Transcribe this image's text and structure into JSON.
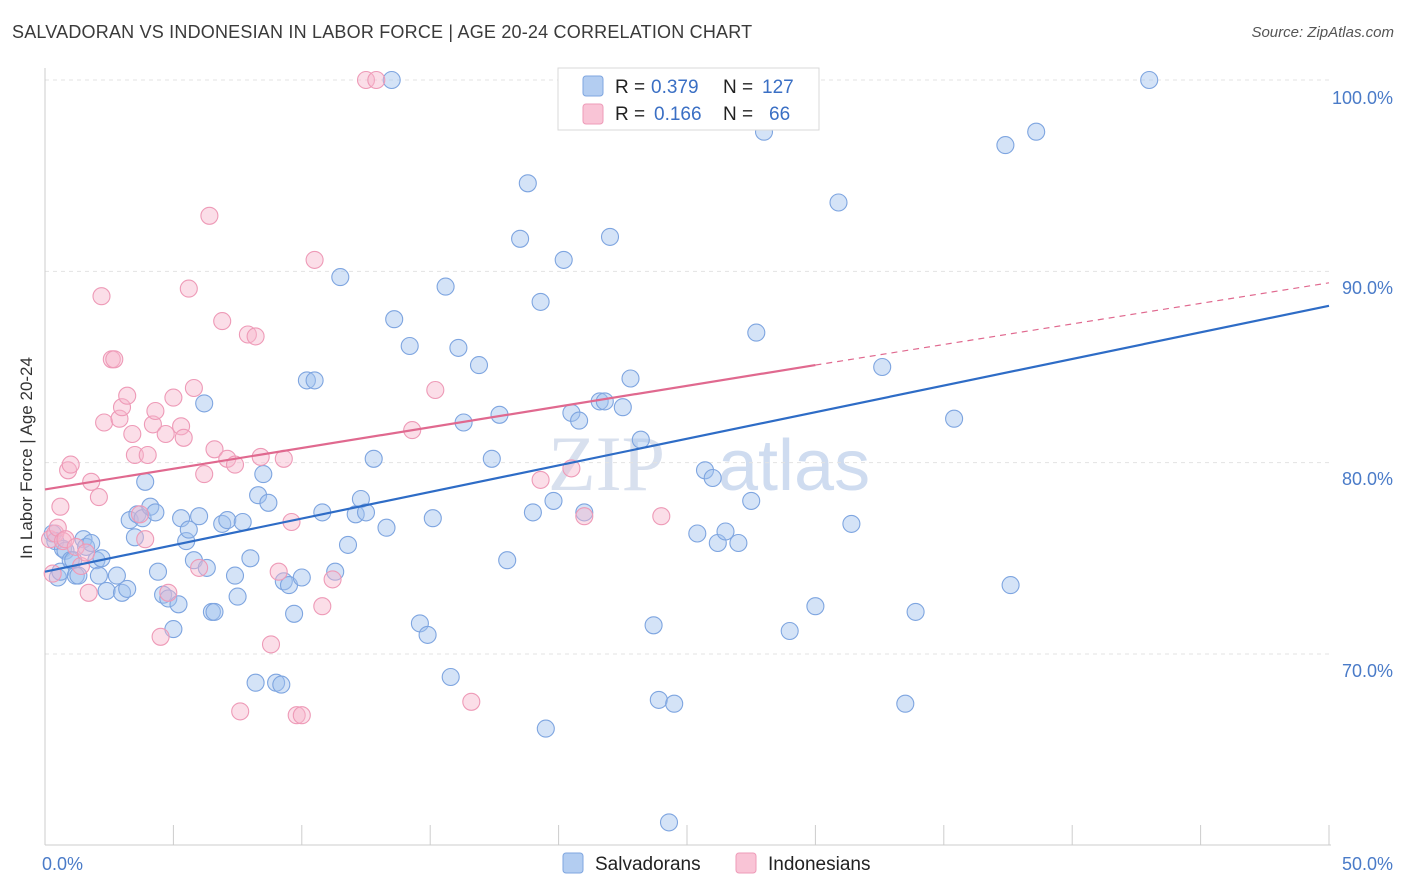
{
  "title": "SALVADORAN VS INDONESIAN IN LABOR FORCE | AGE 20-24 CORRELATION CHART",
  "source": "Source: ZipAtlas.com",
  "chart_data": {
    "type": "scatter",
    "title": "SALVADORAN VS INDONESIAN IN LABOR FORCE | AGE 20-24 CORRELATION CHART",
    "xlabel": "",
    "ylabel": "In Labor Force | Age 20-24",
    "xlim": [
      0,
      50
    ],
    "ylim": [
      60,
      100
    ],
    "x_tick_labels": [
      "0.0%",
      "50.0%"
    ],
    "y_ticks": [
      70,
      80,
      90,
      100
    ],
    "y_tick_labels": [
      "70.0%",
      "80.0%",
      "90.0%",
      "100.0%"
    ],
    "grid": true,
    "watermark": {
      "zip": "ZIP",
      "atlas": "atlas"
    },
    "legend_stats": [
      {
        "r_label": "R =",
        "r_value": "0.379",
        "n_label": "N =",
        "n_value": "127"
      },
      {
        "r_label": "R =",
        "r_value": "0.166",
        "n_label": "N =",
        "n_value": "66"
      }
    ],
    "series": [
      {
        "name": "Salvadorans",
        "color": "#8fb4e8",
        "line_color": "#2e6cc6",
        "trend": {
          "x": [
            0,
            50
          ],
          "y": [
            74.3,
            88.2
          ],
          "dashed_after": null
        },
        "points": [
          [
            0.3,
            76.3
          ],
          [
            0.4,
            75.9
          ],
          [
            0.5,
            74.0
          ],
          [
            0.6,
            74.3
          ],
          [
            0.7,
            75.5
          ],
          [
            0.8,
            75.4
          ],
          [
            1.0,
            74.9
          ],
          [
            1.1,
            74.9
          ],
          [
            1.2,
            74.1
          ],
          [
            1.3,
            74.1
          ],
          [
            1.5,
            76.0
          ],
          [
            1.6,
            75.6
          ],
          [
            1.8,
            75.8
          ],
          [
            2.0,
            74.9
          ],
          [
            2.1,
            74.1
          ],
          [
            2.2,
            75.0
          ],
          [
            2.4,
            73.3
          ],
          [
            2.8,
            74.1
          ],
          [
            3.0,
            73.2
          ],
          [
            3.2,
            73.4
          ],
          [
            3.3,
            77.0
          ],
          [
            3.5,
            76.1
          ],
          [
            3.6,
            77.3
          ],
          [
            3.8,
            77.1
          ],
          [
            3.9,
            79.0
          ],
          [
            4.1,
            77.7
          ],
          [
            4.3,
            77.4
          ],
          [
            4.4,
            74.3
          ],
          [
            4.6,
            73.1
          ],
          [
            4.8,
            72.9
          ],
          [
            5.0,
            71.3
          ],
          [
            5.2,
            72.6
          ],
          [
            5.3,
            77.1
          ],
          [
            5.5,
            75.9
          ],
          [
            5.6,
            76.5
          ],
          [
            5.8,
            74.9
          ],
          [
            6.0,
            77.2
          ],
          [
            6.2,
            83.1
          ],
          [
            6.3,
            74.5
          ],
          [
            6.5,
            72.2
          ],
          [
            6.6,
            72.2
          ],
          [
            6.9,
            76.8
          ],
          [
            7.1,
            77.0
          ],
          [
            7.4,
            74.1
          ],
          [
            7.5,
            73.0
          ],
          [
            7.7,
            76.9
          ],
          [
            8.0,
            75.0
          ],
          [
            8.2,
            68.5
          ],
          [
            8.3,
            78.3
          ],
          [
            8.5,
            79.4
          ],
          [
            8.7,
            77.9
          ],
          [
            9.0,
            68.5
          ],
          [
            9.2,
            68.4
          ],
          [
            9.3,
            73.8
          ],
          [
            9.5,
            73.6
          ],
          [
            9.7,
            72.1
          ],
          [
            10.0,
            74.0
          ],
          [
            10.2,
            84.3
          ],
          [
            10.5,
            84.3
          ],
          [
            10.8,
            77.4
          ],
          [
            11.3,
            74.3
          ],
          [
            11.5,
            89.7
          ],
          [
            11.8,
            75.7
          ],
          [
            12.1,
            77.3
          ],
          [
            12.3,
            78.1
          ],
          [
            12.5,
            77.4
          ],
          [
            12.8,
            80.2
          ],
          [
            13.3,
            76.6
          ],
          [
            13.5,
            100.0
          ],
          [
            13.6,
            87.5
          ],
          [
            14.2,
            86.1
          ],
          [
            14.6,
            71.6
          ],
          [
            14.9,
            71.0
          ],
          [
            15.1,
            77.1
          ],
          [
            15.6,
            89.2
          ],
          [
            15.8,
            68.8
          ],
          [
            16.1,
            86.0
          ],
          [
            16.3,
            82.1
          ],
          [
            16.9,
            85.1
          ],
          [
            17.4,
            80.2
          ],
          [
            17.7,
            82.5
          ],
          [
            18.0,
            74.9
          ],
          [
            18.5,
            91.7
          ],
          [
            18.8,
            94.6
          ],
          [
            19.0,
            77.4
          ],
          [
            19.3,
            88.4
          ],
          [
            19.5,
            66.1
          ],
          [
            19.8,
            78.0
          ],
          [
            20.2,
            90.6
          ],
          [
            20.5,
            82.6
          ],
          [
            20.8,
            82.2
          ],
          [
            21.0,
            77.4
          ],
          [
            21.6,
            83.2
          ],
          [
            21.8,
            83.2
          ],
          [
            22.0,
            91.8
          ],
          [
            22.5,
            82.9
          ],
          [
            22.8,
            84.4
          ],
          [
            23.2,
            81.2
          ],
          [
            23.7,
            71.5
          ],
          [
            23.9,
            67.6
          ],
          [
            24.3,
            61.2
          ],
          [
            24.5,
            67.4
          ],
          [
            25.4,
            76.3
          ],
          [
            25.7,
            79.6
          ],
          [
            26.0,
            79.2
          ],
          [
            26.2,
            75.8
          ],
          [
            26.5,
            76.4
          ],
          [
            27.0,
            75.8
          ],
          [
            27.5,
            78.0
          ],
          [
            27.7,
            86.8
          ],
          [
            28.0,
            97.3
          ],
          [
            29.0,
            71.2
          ],
          [
            30.0,
            72.5
          ],
          [
            30.9,
            93.6
          ],
          [
            31.4,
            76.8
          ],
          [
            32.6,
            85.0
          ],
          [
            33.5,
            67.4
          ],
          [
            33.9,
            72.2
          ],
          [
            35.4,
            82.3
          ],
          [
            37.4,
            96.6
          ],
          [
            37.6,
            73.6
          ],
          [
            38.6,
            97.3
          ],
          [
            43.0,
            100.0
          ]
        ]
      },
      {
        "name": "Indonesians",
        "color": "#f4a9c4",
        "line_color": "#e0698f",
        "trend": {
          "x": [
            0,
            30,
            50
          ],
          "y": [
            78.6,
            85.1,
            89.4
          ],
          "dashed_after": 30
        },
        "points": [
          [
            0.2,
            76.0
          ],
          [
            0.3,
            74.2
          ],
          [
            0.4,
            76.3
          ],
          [
            0.5,
            76.6
          ],
          [
            0.6,
            77.7
          ],
          [
            0.7,
            75.9
          ],
          [
            0.8,
            76.0
          ],
          [
            0.9,
            79.6
          ],
          [
            1.0,
            79.9
          ],
          [
            1.2,
            75.6
          ],
          [
            1.4,
            74.6
          ],
          [
            1.6,
            75.3
          ],
          [
            1.7,
            73.2
          ],
          [
            1.8,
            79.0
          ],
          [
            2.1,
            78.2
          ],
          [
            2.2,
            88.7
          ],
          [
            2.3,
            82.1
          ],
          [
            2.6,
            85.4
          ],
          [
            2.7,
            85.4
          ],
          [
            2.9,
            82.3
          ],
          [
            3.0,
            82.9
          ],
          [
            3.2,
            83.5
          ],
          [
            3.4,
            81.5
          ],
          [
            3.5,
            80.4
          ],
          [
            3.7,
            77.3
          ],
          [
            3.9,
            76.0
          ],
          [
            4.0,
            80.4
          ],
          [
            4.2,
            82.0
          ],
          [
            4.3,
            82.7
          ],
          [
            4.5,
            70.9
          ],
          [
            4.7,
            81.5
          ],
          [
            4.8,
            73.2
          ],
          [
            5.0,
            83.4
          ],
          [
            5.3,
            81.9
          ],
          [
            5.4,
            81.3
          ],
          [
            5.6,
            89.1
          ],
          [
            5.8,
            83.9
          ],
          [
            6.0,
            74.5
          ],
          [
            6.2,
            79.4
          ],
          [
            6.4,
            92.9
          ],
          [
            6.6,
            80.7
          ],
          [
            6.9,
            87.4
          ],
          [
            7.1,
            80.2
          ],
          [
            7.4,
            79.9
          ],
          [
            7.6,
            67.0
          ],
          [
            7.9,
            86.7
          ],
          [
            8.2,
            86.6
          ],
          [
            8.4,
            80.3
          ],
          [
            8.8,
            70.5
          ],
          [
            9.1,
            74.3
          ],
          [
            9.3,
            80.2
          ],
          [
            9.6,
            76.9
          ],
          [
            9.8,
            66.8
          ],
          [
            10.0,
            66.8
          ],
          [
            10.5,
            90.6
          ],
          [
            10.8,
            72.5
          ],
          [
            11.2,
            73.9
          ],
          [
            12.5,
            100.0
          ],
          [
            12.9,
            100.0
          ],
          [
            14.3,
            81.7
          ],
          [
            15.2,
            83.8
          ],
          [
            16.6,
            67.5
          ],
          [
            19.3,
            79.1
          ],
          [
            20.5,
            79.7
          ],
          [
            21.0,
            77.2
          ],
          [
            24.0,
            77.2
          ]
        ]
      }
    ]
  }
}
